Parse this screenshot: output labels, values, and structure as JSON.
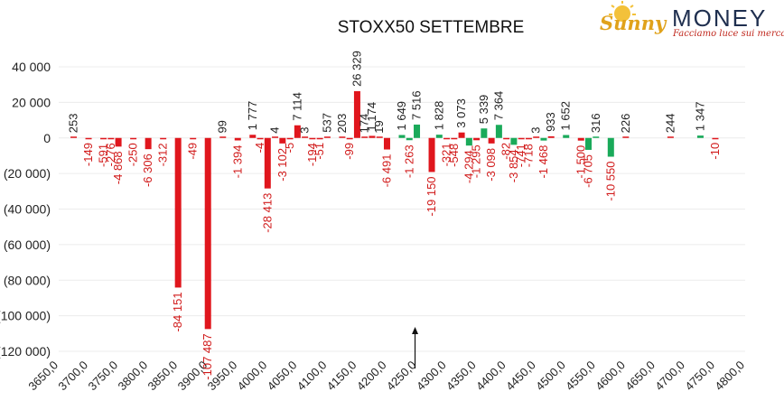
{
  "logo": {
    "brand_sunny": "Sunny",
    "brand_money": "MONEY",
    "tagline": "Facciamo luce sui mercati"
  },
  "chart_data": {
    "type": "bar",
    "title": "STOXX50 SETTEMBRE",
    "xlabel": "",
    "ylabel": "",
    "ylim": [
      -120000,
      40000
    ],
    "yticks": [
      40000,
      20000,
      0,
      -20000,
      -40000,
      -60000,
      -80000,
      -100000,
      -120000
    ],
    "ytick_labels": [
      "40 000",
      "20 000",
      "0",
      "(20 000)",
      "(40 000)",
      "(60 000)",
      "(80 000)",
      "(100 000)",
      "(120 000)"
    ],
    "xlim": [
      3650,
      4800
    ],
    "xticks": [
      3650,
      3700,
      3750,
      3800,
      3850,
      3900,
      3950,
      4000,
      4050,
      4100,
      4150,
      4200,
      4250,
      4300,
      4350,
      4400,
      4450,
      4500,
      4550,
      4600,
      4650,
      4700,
      4750,
      4800
    ],
    "xtick_labels": [
      "3650,0",
      "3700,0",
      "3750,0",
      "3800,0",
      "3850,0",
      "3900,0",
      "3950,0",
      "4000,0",
      "4050,0",
      "4100,0",
      "4150,0",
      "4200,0",
      "4250,0",
      "4300,0",
      "4350,0",
      "4400,0",
      "4450,0",
      "4500,0",
      "4550,0",
      "4600,0",
      "4650,0",
      "4700,0",
      "4750,0",
      "4800,0"
    ],
    "grid": true,
    "colors": {
      "put": "#e0161d",
      "call": "#1aaa5a",
      "label_negative": "#d11a1a",
      "label_positive": "#222222"
    },
    "annotation": {
      "type": "arrow",
      "x": 4250,
      "direction": "up"
    },
    "series": [
      {
        "color": "#e0161d",
        "points": [
          {
            "x": 3675,
            "value": 253,
            "label": "253"
          },
          {
            "x": 3700,
            "value": -149,
            "label": "-149"
          },
          {
            "x": 3725,
            "value": -591,
            "label": "-591"
          },
          {
            "x": 3737.5,
            "value": -276,
            "label": "-276"
          },
          {
            "x": 3750,
            "value": -4868,
            "label": "-4 868"
          },
          {
            "x": 3775,
            "value": -250,
            "label": "-250"
          },
          {
            "x": 3800,
            "value": -6306,
            "label": "-6 306"
          },
          {
            "x": 3825,
            "value": -312,
            "label": "-312"
          },
          {
            "x": 3850,
            "value": -84151,
            "label": "-84 151"
          },
          {
            "x": 3875,
            "value": -49,
            "label": "-49"
          },
          {
            "x": 3900,
            "value": -107487,
            "label": "-107 487"
          },
          {
            "x": 3925,
            "value": 99,
            "label": "99"
          },
          {
            "x": 3950,
            "value": -1394,
            "label": "-1 394"
          },
          {
            "x": 3975,
            "value": 1777,
            "label": "1 777"
          },
          {
            "x": 3987.5,
            "value": -4,
            "label": "-4"
          },
          {
            "x": 4000,
            "value": -28413,
            "label": "-28 413"
          },
          {
            "x": 4012.5,
            "value": 4,
            "label": "4"
          },
          {
            "x": 4025,
            "value": -3102,
            "label": "-3 102"
          },
          {
            "x": 4037.5,
            "value": -5,
            "label": "-5"
          },
          {
            "x": 4050,
            "value": 7114,
            "label": "7 114"
          },
          {
            "x": 4062.5,
            "value": 3,
            "label": "3"
          },
          {
            "x": 4075,
            "value": -194,
            "label": "-194"
          },
          {
            "x": 4087.5,
            "value": -51,
            "label": "-51"
          },
          {
            "x": 4100,
            "value": 537,
            "label": "537"
          },
          {
            "x": 4125,
            "value": 203,
            "label": "203"
          },
          {
            "x": 4137.5,
            "value": -99,
            "label": "-99"
          },
          {
            "x": 4150,
            "value": 26329,
            "label": "26 329"
          },
          {
            "x": 4162.5,
            "value": 174,
            "label": "174"
          },
          {
            "x": 4175,
            "value": 1174,
            "label": "1 174"
          },
          {
            "x": 4187.5,
            "value": 19,
            "label": "19"
          },
          {
            "x": 4200,
            "value": -6491,
            "label": "-6 491"
          },
          {
            "x": 4275,
            "value": -19150,
            "label": "-19 150"
          },
          {
            "x": 4300,
            "value": -321,
            "label": "-321"
          },
          {
            "x": 4312.5,
            "value": -548,
            "label": "-548"
          },
          {
            "x": 4325,
            "value": 3073,
            "label": "3 073"
          },
          {
            "x": 4350,
            "value": -1295,
            "label": "-1 295"
          },
          {
            "x": 4375,
            "value": -3098,
            "label": "-3 098"
          },
          {
            "x": 4400,
            "value": -82,
            "label": "-82"
          },
          {
            "x": 4425,
            "value": -741,
            "label": "-741"
          },
          {
            "x": 4437.5,
            "value": -718,
            "label": "-718"
          },
          {
            "x": 4450,
            "value": 3,
            "label": "3"
          },
          {
            "x": 4475,
            "value": 933,
            "label": "933"
          },
          {
            "x": 4525,
            "value": -1500,
            "label": "-1 500"
          },
          {
            "x": 4600,
            "value": 226,
            "label": "226"
          },
          {
            "x": 4675,
            "value": 244,
            "label": "244"
          },
          {
            "x": 4750,
            "value": -10,
            "label": "-10"
          }
        ]
      },
      {
        "color": "#1aaa5a",
        "points": [
          {
            "x": 4225,
            "value": 1649,
            "label": "1 649"
          },
          {
            "x": 4237.5,
            "value": -1263,
            "label": "-1 263"
          },
          {
            "x": 4250,
            "value": 7516,
            "label": "7 516"
          },
          {
            "x": 4287.5,
            "value": 1828,
            "label": "1 828"
          },
          {
            "x": 4337.5,
            "value": -4294,
            "label": "-4 294"
          },
          {
            "x": 4362.5,
            "value": 5339,
            "label": "5 339"
          },
          {
            "x": 4387.5,
            "value": 7364,
            "label": "7 364"
          },
          {
            "x": 4412.5,
            "value": -3854,
            "label": "-3 854"
          },
          {
            "x": 4462.5,
            "value": -1468,
            "label": "-1 468"
          },
          {
            "x": 4500,
            "value": 1652,
            "label": "1 652"
          },
          {
            "x": 4537.5,
            "value": -6705,
            "label": "-6 705"
          },
          {
            "x": 4550,
            "value": 316,
            "label": "316"
          },
          {
            "x": 4575,
            "value": -10550,
            "label": "-10 550"
          },
          {
            "x": 4725,
            "value": 1347,
            "label": "1 347"
          }
        ]
      }
    ]
  }
}
